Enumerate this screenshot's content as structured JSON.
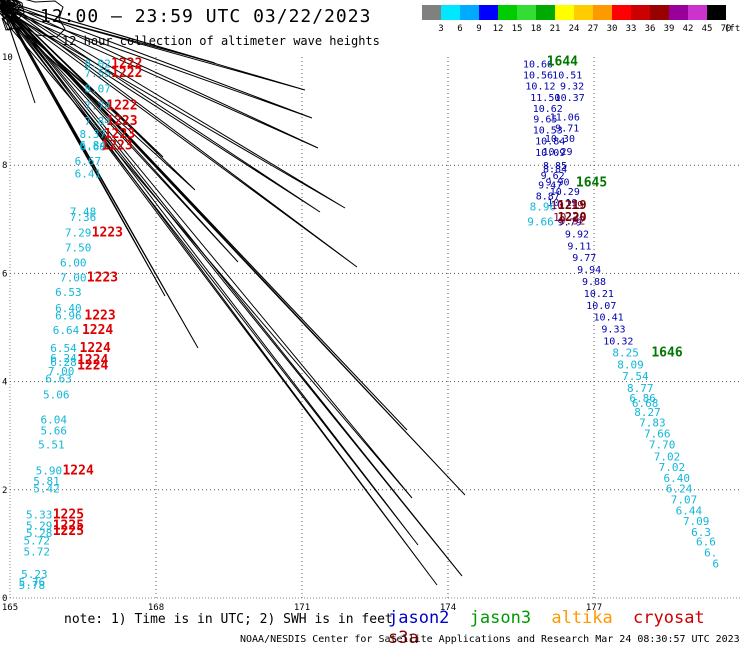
{
  "header": {
    "title": "12:00 – 23:59 UTC 03/22/2023",
    "subtitle": "12 hour collection of altimeter wave heights"
  },
  "footer": {
    "note": "note: 1) Time is in UTC; 2) SWH is in feet",
    "credit": "NOAA/NESDIS Center for Satellite Applications and Research   Mar 24 08:30:57 UTC 2023"
  },
  "satellites": [
    {
      "name": "jason2",
      "color": "#0000d0"
    },
    {
      "name": "jason3",
      "color": "#009900"
    },
    {
      "name": "altika",
      "color": "#ff9900"
    },
    {
      "name": "cryosat",
      "color": "#cc0000"
    },
    {
      "name": "s3a",
      "color": "#880000"
    }
  ],
  "colorbar": {
    "unit": "(ft)",
    "stops": [
      {
        "label": "3",
        "color": "#808080"
      },
      {
        "label": "6",
        "color": "#00e8ff"
      },
      {
        "label": "9",
        "color": "#00aaff"
      },
      {
        "label": "12",
        "color": "#0000ff"
      },
      {
        "label": "15",
        "color": "#00cc00"
      },
      {
        "label": "18",
        "color": "#33dd33"
      },
      {
        "label": "21",
        "color": "#00aa00"
      },
      {
        "label": "24",
        "color": "#ffff00"
      },
      {
        "label": "27",
        "color": "#ffcc00"
      },
      {
        "label": "30",
        "color": "#ff9900"
      },
      {
        "label": "33",
        "color": "#ff0000"
      },
      {
        "label": "36",
        "color": "#cc0000"
      },
      {
        "label": "39",
        "color": "#990000"
      },
      {
        "label": "42",
        "color": "#990099"
      },
      {
        "label": "45",
        "color": "#cc33cc"
      },
      {
        "label": "70",
        "color": "#000000"
      }
    ]
  },
  "chart_data": {
    "type": "scatter",
    "xlim": [
      165,
      180
    ],
    "ylim": [
      0,
      10
    ],
    "x_ticks": [
      "165",
      "168",
      "171",
      "174",
      "177"
    ],
    "y_ticks": [
      "0",
      "2",
      "4",
      "6",
      "8",
      "10"
    ],
    "grid": true,
    "series": [
      {
        "name": "jason2",
        "color": "#0000d0"
      },
      {
        "name": "jason3",
        "color": "#009900"
      },
      {
        "name": "cryosat",
        "color": "#cc0000"
      }
    ],
    "cyan_labels": [
      {
        "x": 166.8,
        "y": 9.88,
        "text": "8.02"
      },
      {
        "x": 166.8,
        "y": 9.7,
        "text": "7.55"
      },
      {
        "x": 166.8,
        "y": 9.42,
        "text": "8.07"
      },
      {
        "x": 166.8,
        "y": 9.1,
        "text": "7.74"
      },
      {
        "x": 166.8,
        "y": 8.82,
        "text": "7.84"
      },
      {
        "x": 166.7,
        "y": 8.58,
        "text": "8.37"
      },
      {
        "x": 166.7,
        "y": 8.37,
        "text": "6.84"
      },
      {
        "x": 166.7,
        "y": 8.35,
        "text": "6.68"
      },
      {
        "x": 166.6,
        "y": 8.08,
        "text": "6.67"
      },
      {
        "x": 166.6,
        "y": 7.85,
        "text": "6.41"
      },
      {
        "x": 166.5,
        "y": 7.14,
        "text": "7.48"
      },
      {
        "x": 166.5,
        "y": 7.04,
        "text": "7.36"
      },
      {
        "x": 166.4,
        "y": 6.76,
        "text": "7.29"
      },
      {
        "x": 166.4,
        "y": 6.48,
        "text": "7.50"
      },
      {
        "x": 166.3,
        "y": 6.2,
        "text": "6.00"
      },
      {
        "x": 166.3,
        "y": 5.92,
        "text": "7.00"
      },
      {
        "x": 166.2,
        "y": 5.66,
        "text": "6.53"
      },
      {
        "x": 166.2,
        "y": 5.36,
        "text": "6.40"
      },
      {
        "x": 166.2,
        "y": 5.22,
        "text": "6.96"
      },
      {
        "x": 166.15,
        "y": 4.95,
        "text": "6.64"
      },
      {
        "x": 166.1,
        "y": 4.62,
        "text": "6.54"
      },
      {
        "x": 166.1,
        "y": 4.44,
        "text": "6.24"
      },
      {
        "x": 166.1,
        "y": 4.36,
        "text": "6.28"
      },
      {
        "x": 166.05,
        "y": 4.2,
        "text": "7.00"
      },
      {
        "x": 166.0,
        "y": 4.06,
        "text": "6.63"
      },
      {
        "x": 165.95,
        "y": 3.76,
        "text": "5.06"
      },
      {
        "x": 165.9,
        "y": 3.3,
        "text": "6.04"
      },
      {
        "x": 165.9,
        "y": 3.1,
        "text": "5.66"
      },
      {
        "x": 165.85,
        "y": 2.84,
        "text": "5.51"
      },
      {
        "x": 165.8,
        "y": 2.36,
        "text": "5.90"
      },
      {
        "x": 165.75,
        "y": 2.16,
        "text": "5.81"
      },
      {
        "x": 165.75,
        "y": 2.02,
        "text": "5.42"
      },
      {
        "x": 165.6,
        "y": 1.54,
        "text": "5.33"
      },
      {
        "x": 165.6,
        "y": 1.34,
        "text": "5.29"
      },
      {
        "x": 165.6,
        "y": 1.2,
        "text": "5.28"
      },
      {
        "x": 165.55,
        "y": 1.06,
        "text": "5.72"
      },
      {
        "x": 165.55,
        "y": 0.86,
        "text": "5.72"
      },
      {
        "x": 165.5,
        "y": 0.44,
        "text": "5.23"
      },
      {
        "x": 165.45,
        "y": 0.3,
        "text": "5.76"
      },
      {
        "x": 165.45,
        "y": 0.24,
        "text": "5.78"
      }
    ],
    "time_labels": [
      {
        "x": 167.4,
        "y": 9.88,
        "text": "1222"
      },
      {
        "x": 167.4,
        "y": 9.7,
        "text": "1222"
      },
      {
        "x": 167.3,
        "y": 9.1,
        "text": "1222"
      },
      {
        "x": 167.3,
        "y": 8.82,
        "text": "1223"
      },
      {
        "x": 167.25,
        "y": 8.58,
        "text": "1223"
      },
      {
        "x": 167.2,
        "y": 8.36,
        "text": "1223"
      },
      {
        "x": 167.0,
        "y": 6.76,
        "text": "1223"
      },
      {
        "x": 166.9,
        "y": 5.92,
        "text": "1223"
      },
      {
        "x": 166.85,
        "y": 5.22,
        "text": "1223"
      },
      {
        "x": 166.8,
        "y": 4.95,
        "text": "1224"
      },
      {
        "x": 166.75,
        "y": 4.62,
        "text": "1224"
      },
      {
        "x": 166.7,
        "y": 4.4,
        "text": "1224"
      },
      {
        "x": 166.7,
        "y": 4.3,
        "text": "1224"
      },
      {
        "x": 166.4,
        "y": 2.36,
        "text": "1224"
      },
      {
        "x": 166.2,
        "y": 1.54,
        "text": "1225"
      },
      {
        "x": 166.2,
        "y": 1.34,
        "text": "1225"
      },
      {
        "x": 166.2,
        "y": 1.24,
        "text": "1225"
      }
    ],
    "jason_labels": [
      {
        "x": 175.85,
        "y": 9.88,
        "text": "10.66"
      },
      {
        "x": 176.45,
        "y": 9.68,
        "text": "10.51"
      },
      {
        "x": 175.85,
        "y": 9.68,
        "text": "10.56"
      },
      {
        "x": 175.9,
        "y": 9.47,
        "text": "10.12"
      },
      {
        "x": 176.55,
        "y": 9.47,
        "text": "9.32"
      },
      {
        "x": 176.0,
        "y": 9.26,
        "text": "11.50"
      },
      {
        "x": 176.5,
        "y": 9.26,
        "text": "10.37"
      },
      {
        "x": 176.05,
        "y": 9.06,
        "text": "10.62"
      },
      {
        "x": 176.4,
        "y": 8.9,
        "text": "11.06"
      },
      {
        "x": 176.0,
        "y": 8.86,
        "text": "9.65"
      },
      {
        "x": 176.45,
        "y": 8.7,
        "text": "9.71"
      },
      {
        "x": 176.05,
        "y": 8.66,
        "text": "10.53"
      },
      {
        "x": 176.3,
        "y": 8.5,
        "text": "10.30"
      },
      {
        "x": 176.1,
        "y": 8.46,
        "text": "10.84"
      },
      {
        "x": 176.25,
        "y": 8.26,
        "text": "10.29"
      },
      {
        "x": 176.1,
        "y": 8.24,
        "text": "10.09"
      },
      {
        "x": 176.2,
        "y": 8.0,
        "text": "8.85"
      },
      {
        "x": 176.2,
        "y": 7.94,
        "text": "8.84"
      },
      {
        "x": 176.15,
        "y": 7.82,
        "text": "9.62"
      },
      {
        "x": 176.25,
        "y": 7.7,
        "text": "9.90"
      },
      {
        "x": 176.1,
        "y": 7.64,
        "text": "9.47"
      },
      {
        "x": 176.4,
        "y": 7.52,
        "text": "10.29"
      },
      {
        "x": 176.05,
        "y": 7.44,
        "text": "8.87"
      },
      {
        "x": 176.35,
        "y": 7.32,
        "text": "10.19"
      },
      {
        "x": 176.5,
        "y": 6.96,
        "text": "9.79"
      },
      {
        "x": 176.65,
        "y": 6.74,
        "text": "9.92"
      },
      {
        "x": 176.7,
        "y": 6.52,
        "text": "9.11"
      },
      {
        "x": 176.8,
        "y": 6.3,
        "text": "9.77"
      },
      {
        "x": 176.9,
        "y": 6.08,
        "text": "9.94"
      },
      {
        "x": 177.0,
        "y": 5.86,
        "text": "9.88"
      },
      {
        "x": 177.1,
        "y": 5.64,
        "text": "10.21"
      },
      {
        "x": 177.15,
        "y": 5.42,
        "text": "10.07"
      },
      {
        "x": 177.3,
        "y": 5.2,
        "text": "10.41"
      },
      {
        "x": 177.4,
        "y": 4.98,
        "text": "9.33"
      },
      {
        "x": 177.5,
        "y": 4.76,
        "text": "10.32"
      }
    ],
    "jason_cyan_labels": [
      {
        "x": 175.95,
        "y": 7.24,
        "text": "8.96"
      },
      {
        "x": 175.9,
        "y": 6.96,
        "text": "9.66"
      },
      {
        "x": 177.65,
        "y": 4.54,
        "text": "8.25"
      },
      {
        "x": 177.75,
        "y": 4.32,
        "text": "8.09"
      },
      {
        "x": 177.85,
        "y": 4.1,
        "text": "7.54"
      },
      {
        "x": 177.95,
        "y": 3.88,
        "text": "8.77"
      },
      {
        "x": 178.0,
        "y": 3.7,
        "text": "6.86"
      },
      {
        "x": 178.05,
        "y": 3.6,
        "text": "6.68"
      },
      {
        "x": 178.1,
        "y": 3.44,
        "text": "8.27"
      },
      {
        "x": 178.2,
        "y": 3.24,
        "text": "7.83"
      },
      {
        "x": 178.3,
        "y": 3.04,
        "text": "7.66"
      },
      {
        "x": 178.4,
        "y": 2.84,
        "text": "7.70"
      },
      {
        "x": 178.5,
        "y": 2.62,
        "text": "7.02"
      },
      {
        "x": 178.6,
        "y": 2.42,
        "text": "7.02"
      },
      {
        "x": 178.7,
        "y": 2.22,
        "text": "6.40"
      },
      {
        "x": 178.75,
        "y": 2.02,
        "text": "6.24"
      },
      {
        "x": 178.85,
        "y": 1.82,
        "text": "7.07"
      },
      {
        "x": 178.95,
        "y": 1.62,
        "text": "6.44"
      },
      {
        "x": 179.1,
        "y": 1.42,
        "text": "7.09"
      },
      {
        "x": 179.2,
        "y": 1.22,
        "text": "6.3"
      },
      {
        "x": 179.3,
        "y": 1.04,
        "text": "6.6"
      },
      {
        "x": 179.4,
        "y": 0.84,
        "text": "6."
      },
      {
        "x": 179.5,
        "y": 0.64,
        "text": "6"
      }
    ],
    "cryosat_track_labels": [
      {
        "x": 176.45,
        "y": 7.26,
        "text": "10.19"
      },
      {
        "x": 176.5,
        "y": 7.04,
        "text": "10.20"
      },
      {
        "x": 176.55,
        "y": 6.98,
        "text": "9.92"
      }
    ],
    "green_time_labels": [
      {
        "x": 176.35,
        "y": 9.92,
        "text": "1644"
      },
      {
        "x": 176.95,
        "y": 7.68,
        "text": "1645"
      },
      {
        "x": 178.5,
        "y": 4.54,
        "text": "1646"
      }
    ],
    "dark_time_labels": [
      {
        "x": 176.55,
        "y": 7.26,
        "text": "1219"
      },
      {
        "x": 176.55,
        "y": 7.04,
        "text": "1220"
      }
    ]
  }
}
